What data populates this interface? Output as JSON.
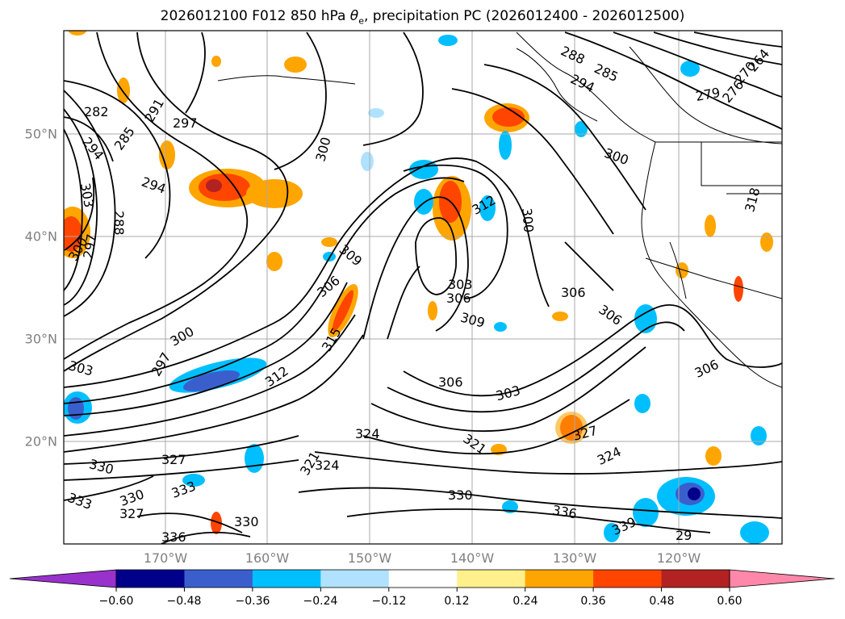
{
  "title": {
    "prefix": "2026012100 F012 850 hPa ",
    "theta": "θ",
    "sub": "e",
    "suffix": ", precipitation PC (2026012400 - 2026012500)"
  },
  "map": {
    "lat_labels": [
      "50°N",
      "40°N",
      "30°N",
      "20°N"
    ],
    "lon_labels": [
      "170°W",
      "160°W",
      "150°W",
      "140°W",
      "130°W",
      "120°W"
    ],
    "contour_labels": [
      "282",
      "285",
      "291",
      "297",
      "294",
      "294",
      "303",
      "288",
      "297",
      "300",
      "300",
      "288",
      "285",
      "294",
      "279",
      "276",
      "270",
      "264",
      "300",
      "312",
      "300",
      "309",
      "306",
      "303",
      "306",
      "309",
      "306",
      "306",
      "306",
      "300",
      "297",
      "303",
      "312",
      "315",
      "303",
      "306",
      "303",
      "324",
      "321",
      "327",
      "324",
      "330",
      "327",
      "333",
      "321",
      "330",
      "333",
      "327",
      "330",
      "324",
      "330",
      "336",
      "336",
      "339",
      "29",
      "318"
    ]
  },
  "colorbar": {
    "ticks": [
      "−0.60",
      "−0.48",
      "−0.36",
      "−0.24",
      "−0.12",
      "0.12",
      "0.24",
      "0.36",
      "0.48",
      "0.60"
    ],
    "colors": [
      "#9932cc",
      "#00008b",
      "#3a5fcd",
      "#00bfff",
      "#b0e2ff",
      "#ffffff",
      "#fff08c",
      "#ffa500",
      "#ff4500",
      "#b22222",
      "#ff88aa"
    ]
  }
}
